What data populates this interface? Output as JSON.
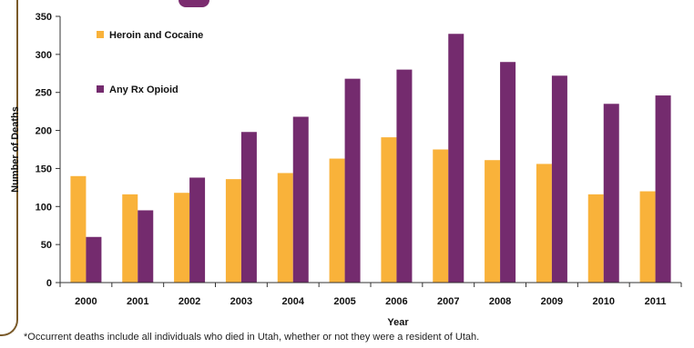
{
  "colors": {
    "heroin_cocaine": "#f9b23a",
    "rx_opioid": "#742b6e",
    "axis": "#333333",
    "frame": "#7a5a2a"
  },
  "chart_data": {
    "type": "bar",
    "categories": [
      "2000",
      "2001",
      "2002",
      "2003",
      "2004",
      "2005",
      "2006",
      "2007",
      "2008",
      "2009",
      "2010",
      "2011"
    ],
    "series": [
      {
        "name": "Heroin and Cocaine",
        "color": "#f9b23a",
        "values": [
          140,
          116,
          118,
          136,
          144,
          163,
          191,
          175,
          161,
          156,
          116,
          120
        ]
      },
      {
        "name": "Any Rx Opioid",
        "color": "#742b6e",
        "values": [
          60,
          95,
          138,
          198,
          218,
          268,
          280,
          327,
          290,
          272,
          235,
          246
        ]
      }
    ],
    "xlabel": "Year",
    "ylabel": "Number of Deaths",
    "ylim": [
      0,
      350
    ],
    "yticks": [
      0,
      50,
      100,
      150,
      200,
      250,
      300,
      350
    ],
    "grid": false,
    "legend_position": "upper-left"
  },
  "footnote": "*Occurrent deaths include all individuals who died in Utah, whether or not they were a resident of Utah."
}
